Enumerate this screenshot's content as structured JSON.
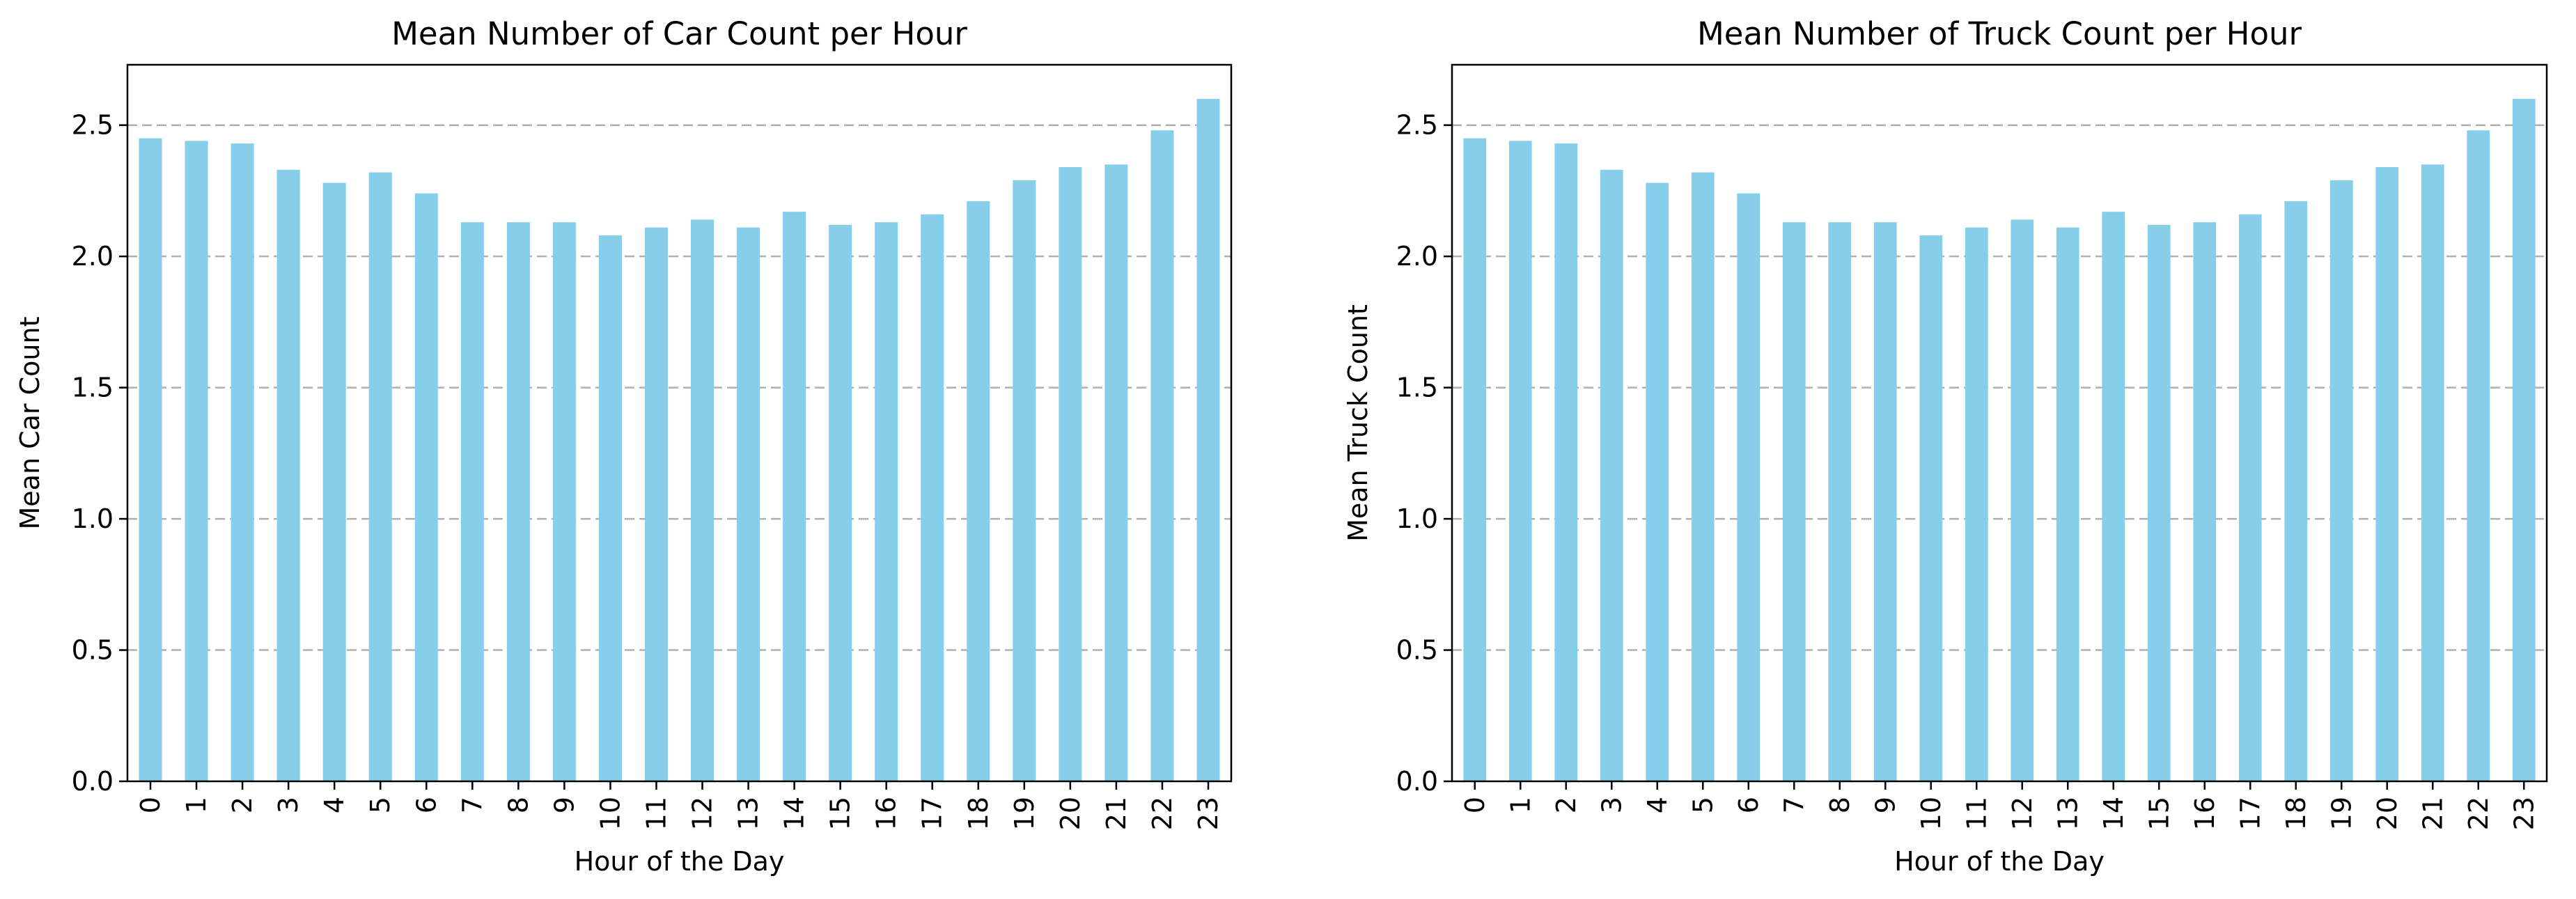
{
  "chart_data": [
    {
      "type": "bar",
      "title": "Mean Number of Car Count per Hour",
      "xlabel": "Hour of the Day",
      "ylabel": "Mean Car Count",
      "categories": [
        "0",
        "1",
        "2",
        "3",
        "4",
        "5",
        "6",
        "7",
        "8",
        "9",
        "10",
        "11",
        "12",
        "13",
        "14",
        "15",
        "16",
        "17",
        "18",
        "19",
        "20",
        "21",
        "22",
        "23"
      ],
      "values": [
        2.45,
        2.44,
        2.43,
        2.33,
        2.28,
        2.32,
        2.24,
        2.13,
        2.13,
        2.13,
        2.08,
        2.11,
        2.14,
        2.11,
        2.17,
        2.12,
        2.13,
        2.16,
        2.21,
        2.29,
        2.34,
        2.35,
        2.48,
        2.6
      ],
      "ylim": [
        0,
        2.73
      ],
      "yticks": [
        0.0,
        0.5,
        1.0,
        1.5,
        2.0,
        2.5
      ],
      "ytick_labels": [
        "0.0",
        "0.5",
        "1.0",
        "1.5",
        "2.0",
        "2.5"
      ],
      "grid": "y-dashed",
      "bar_color": "#87ceeb"
    },
    {
      "type": "bar",
      "title": "Mean Number of Truck Count per Hour",
      "xlabel": "Hour of the Day",
      "ylabel": "Mean Truck Count",
      "categories": [
        "0",
        "1",
        "2",
        "3",
        "4",
        "5",
        "6",
        "7",
        "8",
        "9",
        "10",
        "11",
        "12",
        "13",
        "14",
        "15",
        "16",
        "17",
        "18",
        "19",
        "20",
        "21",
        "22",
        "23"
      ],
      "values": [
        2.45,
        2.44,
        2.43,
        2.33,
        2.28,
        2.32,
        2.24,
        2.13,
        2.13,
        2.13,
        2.08,
        2.11,
        2.14,
        2.11,
        2.17,
        2.12,
        2.13,
        2.16,
        2.21,
        2.29,
        2.34,
        2.35,
        2.48,
        2.6
      ],
      "ylim": [
        0,
        2.73
      ],
      "yticks": [
        0.0,
        0.5,
        1.0,
        1.5,
        2.0,
        2.5
      ],
      "ytick_labels": [
        "0.0",
        "0.5",
        "1.0",
        "1.5",
        "2.0",
        "2.5"
      ],
      "grid": "y-dashed",
      "bar_color": "#87ceeb"
    }
  ]
}
